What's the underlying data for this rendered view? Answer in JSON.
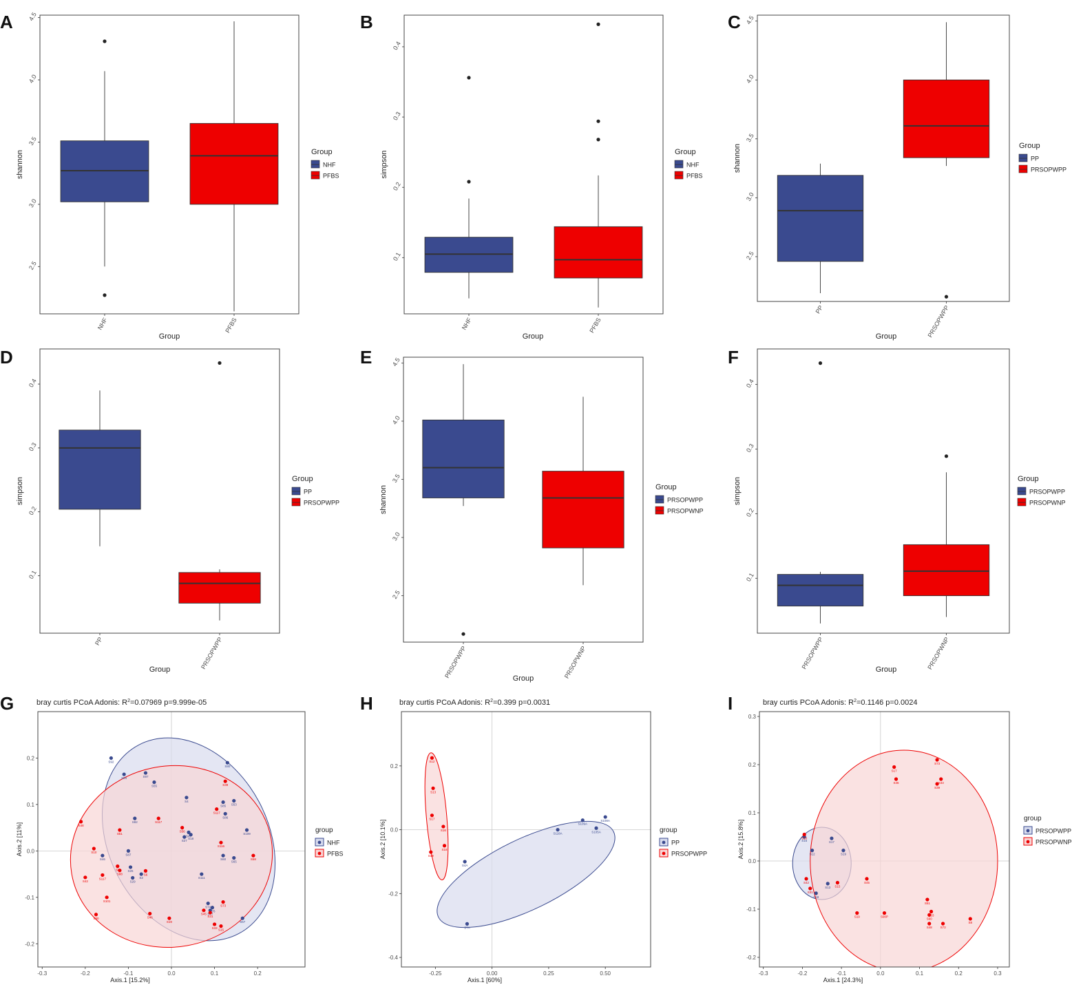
{
  "colors": {
    "blue": "#3a4a8f",
    "red": "#ee0000",
    "ellipse_blue_fill": "#d8dcee",
    "ellipse_red_fill": "#f8d6d6",
    "grid": "#c8c8c8",
    "axis_text": "#4d4d4d",
    "panel_border": "#444444"
  },
  "chart_data": [
    {
      "panel_letter": "A",
      "type": "boxplot",
      "xlabel": "Group",
      "ylabel": "shannon",
      "ylim": [
        2.12,
        4.52
      ],
      "yticks": [
        "2.5",
        "3.0",
        "3.5",
        "4.0",
        "4.5"
      ],
      "categories": [
        "NHF",
        "PFBS"
      ],
      "boxes": [
        {
          "group": "NHF",
          "q1": 3.02,
          "median": 3.27,
          "q3": 3.51,
          "whisker_low": 2.5,
          "whisker_high": 4.07,
          "outliers": [
            4.31,
            2.27
          ]
        },
        {
          "group": "PFBS",
          "q1": 3.0,
          "median": 3.39,
          "q3": 3.65,
          "whisker_low": 2.14,
          "whisker_high": 4.47,
          "outliers": []
        }
      ],
      "legend_title": "Group",
      "legend": [
        "NHF",
        "PFBS"
      ]
    },
    {
      "panel_letter": "B",
      "type": "boxplot",
      "xlabel": "Group",
      "ylabel": "simpson",
      "ylim": [
        0.02,
        0.445
      ],
      "yticks": [
        "0.1",
        "0.2",
        "0.3",
        "0.4"
      ],
      "categories": [
        "NHF",
        "PFBS"
      ],
      "boxes": [
        {
          "group": "NHF",
          "q1": 0.079,
          "median": 0.105,
          "q3": 0.129,
          "whisker_low": 0.042,
          "whisker_high": 0.184,
          "outliers": [
            0.356,
            0.208
          ]
        },
        {
          "group": "PFBS",
          "q1": 0.071,
          "median": 0.097,
          "q3": 0.144,
          "whisker_low": 0.029,
          "whisker_high": 0.217,
          "outliers": [
            0.432,
            0.294,
            0.268
          ]
        }
      ],
      "legend_title": "Group",
      "legend": [
        "NHF",
        "PFBS"
      ]
    },
    {
      "panel_letter": "C",
      "type": "boxplot",
      "xlabel": "Group",
      "ylabel": "shannon",
      "ylim": [
        2.12,
        4.55
      ],
      "yticks": [
        "2.5",
        "3.0",
        "3.5",
        "4.0",
        "4.5"
      ],
      "categories": [
        "PP",
        "PRSOPWPP"
      ],
      "boxes": [
        {
          "group": "PP",
          "q1": 2.46,
          "median": 2.89,
          "q3": 3.19,
          "whisker_low": 2.19,
          "whisker_high": 3.29,
          "outliers": []
        },
        {
          "group": "PRSOPWPP",
          "q1": 3.34,
          "median": 3.61,
          "q3": 4.0,
          "whisker_low": 3.27,
          "whisker_high": 4.49,
          "outliers": [
            2.16
          ]
        }
      ],
      "legend_title": "Group",
      "legend": [
        "PP",
        "PRSOPWPP"
      ]
    },
    {
      "panel_letter": "D",
      "type": "boxplot",
      "xlabel": "Group",
      "ylabel": "simpson",
      "ylim": [
        0.01,
        0.455
      ],
      "yticks": [
        "0.1",
        "0.2",
        "0.3",
        "0.4"
      ],
      "categories": [
        "PP",
        "PRSOPWPP"
      ],
      "boxes": [
        {
          "group": "PP",
          "q1": 0.204,
          "median": 0.3,
          "q3": 0.328,
          "whisker_low": 0.146,
          "whisker_high": 0.39,
          "outliers": []
        },
        {
          "group": "PRSOPWPP",
          "q1": 0.057,
          "median": 0.088,
          "q3": 0.105,
          "whisker_low": 0.03,
          "whisker_high": 0.11,
          "outliers": [
            0.433
          ]
        }
      ],
      "legend_title": "Group",
      "legend": [
        "PP",
        "PRSOPWPP"
      ]
    },
    {
      "panel_letter": "E",
      "type": "boxplot",
      "xlabel": "Group",
      "ylabel": "shannon",
      "ylim": [
        2.1,
        4.55
      ],
      "yticks": [
        "2.5",
        "3.0",
        "3.5",
        "4.0",
        "4.5"
      ],
      "categories": [
        "PRSOPWPP",
        "PRSOPWNP"
      ],
      "boxes": [
        {
          "group": "PRSOPWPP",
          "q1": 3.34,
          "median": 3.6,
          "q3": 4.01,
          "whisker_low": 3.27,
          "whisker_high": 4.49,
          "outliers": [
            2.17
          ]
        },
        {
          "group": "PRSOPWNP",
          "q1": 2.91,
          "median": 3.34,
          "q3": 3.57,
          "whisker_low": 2.59,
          "whisker_high": 4.21,
          "outliers": []
        }
      ],
      "legend_title": "Group",
      "legend": [
        "PRSOPWPP",
        "PRSOPWNP"
      ]
    },
    {
      "panel_letter": "F",
      "type": "boxplot",
      "xlabel": "Group",
      "ylabel": "simpson",
      "ylim": [
        0.015,
        0.455
      ],
      "yticks": [
        "0.1",
        "0.2",
        "0.3",
        "0.4"
      ],
      "categories": [
        "PRSOPWPP",
        "PRSOPWNP"
      ],
      "boxes": [
        {
          "group": "PRSOPWPP",
          "q1": 0.057,
          "median": 0.089,
          "q3": 0.106,
          "whisker_low": 0.03,
          "whisker_high": 0.11,
          "outliers": [
            0.433
          ]
        },
        {
          "group": "PRSOPWNP",
          "q1": 0.073,
          "median": 0.111,
          "q3": 0.152,
          "whisker_low": 0.04,
          "whisker_high": 0.264,
          "outliers": [
            0.289
          ]
        }
      ],
      "legend_title": "Group",
      "legend": [
        "PRSOPWPP",
        "PRSOPWNP"
      ]
    },
    {
      "panel_letter": "G",
      "type": "scatter",
      "title_prefix": "bray curtis PCoA   Adonis: R",
      "title_sup": "2",
      "title_suffix": "=0.07969 p=9.999e-05",
      "xlabel": "Axis.1  [15.2%]",
      "ylabel": "Axis.2  [11%]",
      "xlim": [
        -0.31,
        0.31
      ],
      "ylim": [
        -0.25,
        0.3
      ],
      "xticks": [
        "-0.3",
        "-0.2",
        "-0.1",
        "0.0",
        "0.1",
        "0.2"
      ],
      "xtick_values": [
        -0.3,
        -0.2,
        -0.1,
        0.0,
        0.1,
        0.2
      ],
      "yticks": [
        "-0.2",
        "-0.1",
        "0.0",
        "0.1",
        "0.2"
      ],
      "ytick_values": [
        -0.2,
        -0.1,
        0.0,
        0.1,
        0.2
      ],
      "legend_title": "group",
      "legend": [
        "NHF",
        "PFBS"
      ],
      "ellipses": [
        {
          "group": "NHF",
          "cx": 0.04,
          "cy": 0.025,
          "rx": 0.185,
          "ry": 0.23,
          "angle": -28
        },
        {
          "group": "PFBS",
          "cx": 0.0,
          "cy": -0.012,
          "rx": 0.235,
          "ry": 0.195,
          "angle": -10
        }
      ],
      "points": [
        {
          "group": "NHF",
          "x": -0.14,
          "y": 0.2,
          "label": "S92"
        },
        {
          "group": "NHF",
          "x": 0.13,
          "y": 0.19,
          "label": "S80"
        },
        {
          "group": "NHF",
          "x": -0.11,
          "y": 0.165,
          "label": "S84"
        },
        {
          "group": "NHF",
          "x": -0.06,
          "y": 0.168,
          "label": "S97"
        },
        {
          "group": "NHF",
          "x": -0.04,
          "y": 0.148,
          "label": "S55"
        },
        {
          "group": "NHF",
          "x": 0.035,
          "y": 0.115,
          "label": "S4"
        },
        {
          "group": "NHF",
          "x": 0.145,
          "y": 0.108,
          "label": "S53"
        },
        {
          "group": "NHF",
          "x": 0.12,
          "y": 0.105,
          "label": "S85"
        },
        {
          "group": "NHF",
          "x": 0.125,
          "y": 0.08,
          "label": "S86"
        },
        {
          "group": "NHF",
          "x": -0.085,
          "y": 0.07,
          "label": "S82"
        },
        {
          "group": "NHF",
          "x": 0.175,
          "y": 0.045,
          "label": "S109"
        },
        {
          "group": "NHF",
          "x": 0.04,
          "y": 0.04,
          "label": "S47"
        },
        {
          "group": "NHF",
          "x": 0.045,
          "y": 0.035,
          "label": "S18"
        },
        {
          "group": "NHF",
          "x": 0.03,
          "y": 0.03,
          "label": "S27"
        },
        {
          "group": "NHF",
          "x": -0.1,
          "y": 0.0,
          "label": "S87"
        },
        {
          "group": "NHF",
          "x": 0.12,
          "y": -0.01,
          "label": "S60"
        },
        {
          "group": "NHF",
          "x": 0.145,
          "y": -0.015,
          "label": "S65"
        },
        {
          "group": "NHF",
          "x": -0.16,
          "y": -0.01,
          "label": "S46"
        },
        {
          "group": "NHF",
          "x": -0.095,
          "y": -0.035,
          "label": "S26"
        },
        {
          "group": "NHF",
          "x": -0.07,
          "y": -0.05,
          "label": "S2"
        },
        {
          "group": "NHF",
          "x": -0.09,
          "y": -0.058,
          "label": "S29"
        },
        {
          "group": "NHF",
          "x": 0.07,
          "y": -0.05,
          "label": "S111"
        },
        {
          "group": "NHF",
          "x": 0.085,
          "y": -0.113,
          "label": "S74"
        },
        {
          "group": "NHF",
          "x": 0.095,
          "y": -0.122,
          "label": "S76"
        },
        {
          "group": "NHF",
          "x": 0.09,
          "y": -0.128,
          "label": "S77"
        },
        {
          "group": "NHF",
          "x": 0.165,
          "y": -0.145,
          "label": "S67"
        },
        {
          "group": "PFBS",
          "x": 0.125,
          "y": 0.15,
          "label": "S39"
        },
        {
          "group": "PFBS",
          "x": 0.105,
          "y": 0.09,
          "label": "S117"
        },
        {
          "group": "PFBS",
          "x": -0.21,
          "y": 0.063,
          "label": "S48"
        },
        {
          "group": "PFBS",
          "x": -0.03,
          "y": 0.07,
          "label": "S117"
        },
        {
          "group": "PFBS",
          "x": 0.025,
          "y": 0.05,
          "label": "S56"
        },
        {
          "group": "PFBS",
          "x": -0.12,
          "y": 0.045,
          "label": "S51"
        },
        {
          "group": "PFBS",
          "x": 0.115,
          "y": 0.018,
          "label": "S116"
        },
        {
          "group": "PFBS",
          "x": -0.18,
          "y": 0.005,
          "label": "S10"
        },
        {
          "group": "PFBS",
          "x": -0.125,
          "y": -0.033,
          "label": "S8"
        },
        {
          "group": "PFBS",
          "x": -0.12,
          "y": -0.042,
          "label": "S88"
        },
        {
          "group": "PFBS",
          "x": -0.06,
          "y": -0.043,
          "label": "S6"
        },
        {
          "group": "PFBS",
          "x": -0.2,
          "y": -0.057,
          "label": "S42"
        },
        {
          "group": "PFBS",
          "x": -0.16,
          "y": -0.052,
          "label": "S117"
        },
        {
          "group": "PFBS",
          "x": 0.19,
          "y": -0.01,
          "label": "S58"
        },
        {
          "group": "PFBS",
          "x": -0.15,
          "y": -0.1,
          "label": "S101"
        },
        {
          "group": "PFBS",
          "x": -0.175,
          "y": -0.137,
          "label": "S90"
        },
        {
          "group": "PFBS",
          "x": -0.05,
          "y": -0.135,
          "label": "S46"
        },
        {
          "group": "PFBS",
          "x": -0.005,
          "y": -0.145,
          "label": "S19"
        },
        {
          "group": "PFBS",
          "x": 0.12,
          "y": -0.11,
          "label": "S73"
        },
        {
          "group": "PFBS",
          "x": 0.075,
          "y": -0.128,
          "label": "S45"
        },
        {
          "group": "PFBS",
          "x": 0.09,
          "y": -0.133,
          "label": "S31"
        },
        {
          "group": "PFBS",
          "x": 0.1,
          "y": -0.158,
          "label": "S33"
        },
        {
          "group": "PFBS",
          "x": 0.115,
          "y": -0.162,
          "label": "S15"
        }
      ]
    },
    {
      "panel_letter": "H",
      "type": "scatter",
      "title_prefix": "bray curtis PCoA   Adonis: R",
      "title_sup": "2",
      "title_suffix": "=0.399 p=0.0031",
      "xlabel": "Axis.1  [60%]",
      "ylabel": "Axis.2  [10.1%]",
      "xlim": [
        -0.4,
        0.7
      ],
      "ylim": [
        -0.43,
        0.37
      ],
      "xticks": [
        "-0.25",
        "0.00",
        "0.25",
        "0.50"
      ],
      "xtick_values": [
        -0.25,
        0.0,
        0.25,
        0.5
      ],
      "yticks": [
        "-0.4",
        "-0.2",
        "0.0",
        "0.2"
      ],
      "ytick_values": [
        -0.4,
        -0.2,
        0.0,
        0.2
      ],
      "legend_title": "group",
      "legend": [
        "PP",
        "PRSOPWPP"
      ],
      "ellipses": [
        {
          "group": "PP",
          "cx": 0.15,
          "cy": -0.14,
          "rx": 0.43,
          "ry": 0.11,
          "angle": -26
        },
        {
          "group": "PRSOPWPP",
          "cx": -0.245,
          "cy": 0.042,
          "rx": 0.045,
          "ry": 0.2,
          "angle": -5
        }
      ],
      "points": [
        {
          "group": "PP",
          "x": 0.29,
          "y": 0.0,
          "label": "S118A"
        },
        {
          "group": "PP",
          "x": 0.4,
          "y": 0.03,
          "label": "S109A"
        },
        {
          "group": "PP",
          "x": 0.46,
          "y": 0.005,
          "label": "S105A"
        },
        {
          "group": "PP",
          "x": 0.5,
          "y": 0.04,
          "label": "S108A"
        },
        {
          "group": "PP",
          "x": -0.12,
          "y": -0.1,
          "label": "S4A"
        },
        {
          "group": "PP",
          "x": -0.11,
          "y": -0.295,
          "label": "S7A"
        },
        {
          "group": "PRSOPWPP",
          "x": -0.265,
          "y": 0.225,
          "label": "S12"
        },
        {
          "group": "PRSOPWPP",
          "x": -0.26,
          "y": 0.13,
          "label": "S13"
        },
        {
          "group": "PRSOPWPP",
          "x": -0.265,
          "y": 0.045,
          "label": "S17"
        },
        {
          "group": "PRSOPWPP",
          "x": -0.215,
          "y": 0.01,
          "label": "S16"
        },
        {
          "group": "PRSOPWPP",
          "x": -0.21,
          "y": -0.05,
          "label": "S18"
        },
        {
          "group": "PRSOPWPP",
          "x": -0.27,
          "y": -0.07,
          "label": "S19"
        }
      ]
    },
    {
      "panel_letter": "I",
      "type": "scatter",
      "title_prefix": "bray curtis PCoA   Adonis: R",
      "title_sup": "2",
      "title_suffix": "=0.1146 p=0.0024",
      "xlabel": "Axis.1  [24.3%]",
      "ylabel": "Axis.2  [15.8%]",
      "xlim": [
        -0.31,
        0.33
      ],
      "ylim": [
        -0.22,
        0.31
      ],
      "xticks": [
        "-0.3",
        "-0.2",
        "-0.1",
        "0.0",
        "0.1",
        "0.2",
        "0.3"
      ],
      "xtick_values": [
        -0.3,
        -0.2,
        -0.1,
        0.0,
        0.1,
        0.2,
        0.3
      ],
      "yticks": [
        "-0.2",
        "-0.1",
        "0.0",
        "0.1",
        "0.2",
        "0.3"
      ],
      "ytick_values": [
        -0.2,
        -0.1,
        0.0,
        0.1,
        0.2,
        0.3
      ],
      "legend_title": "group",
      "legend": [
        "PRSOPWPP",
        "PRSOPWNP"
      ],
      "ellipses": [
        {
          "group": "PRSOPWPP",
          "cx": -0.15,
          "cy": -0.005,
          "rx": 0.075,
          "ry": 0.075,
          "angle": 0
        },
        {
          "group": "PRSOPWNP",
          "cx": 0.06,
          "cy": 0.0,
          "rx": 0.24,
          "ry": 0.23,
          "angle": 0
        }
      ],
      "points": [
        {
          "group": "PRSOPWPP",
          "x": -0.195,
          "y": 0.05,
          "label": "S16"
        },
        {
          "group": "PRSOPWPP",
          "x": -0.125,
          "y": 0.047,
          "label": "S17"
        },
        {
          "group": "PRSOPWPP",
          "x": -0.175,
          "y": 0.022,
          "label": "S12"
        },
        {
          "group": "PRSOPWPP",
          "x": -0.095,
          "y": 0.022,
          "label": "S19"
        },
        {
          "group": "PRSOPWPP",
          "x": -0.135,
          "y": -0.047,
          "label": "S13"
        },
        {
          "group": "PRSOPWPP",
          "x": -0.165,
          "y": -0.067,
          "label": "S18"
        },
        {
          "group": "PRSOPWNP",
          "x": 0.145,
          "y": 0.21,
          "label": "S73"
        },
        {
          "group": "PRSOPWNP",
          "x": 0.035,
          "y": 0.195,
          "label": "S17"
        },
        {
          "group": "PRSOPWNP",
          "x": 0.155,
          "y": 0.17,
          "label": "S43"
        },
        {
          "group": "PRSOPWNP",
          "x": 0.04,
          "y": 0.17,
          "label": "S46"
        },
        {
          "group": "PRSOPWNP",
          "x": 0.145,
          "y": 0.16,
          "label": "S39"
        },
        {
          "group": "PRSOPWNP",
          "x": -0.195,
          "y": 0.055,
          "label": "S10"
        },
        {
          "group": "PRSOPWNP",
          "x": -0.19,
          "y": -0.037,
          "label": "S42"
        },
        {
          "group": "PRSOPWNP",
          "x": -0.035,
          "y": -0.037,
          "label": "S45"
        },
        {
          "group": "PRSOPWNP",
          "x": -0.11,
          "y": -0.045,
          "label": "S15"
        },
        {
          "group": "PRSOPWNP",
          "x": -0.18,
          "y": -0.057,
          "label": "S31"
        },
        {
          "group": "PRSOPWNP",
          "x": 0.12,
          "y": -0.08,
          "label": "S51"
        },
        {
          "group": "PRSOPWNP",
          "x": -0.06,
          "y": -0.108,
          "label": "S19"
        },
        {
          "group": "PRSOPWNP",
          "x": 0.01,
          "y": -0.108,
          "label": "S90P"
        },
        {
          "group": "PRSOPWNP",
          "x": 0.13,
          "y": -0.105,
          "label": "S33"
        },
        {
          "group": "PRSOPWNP",
          "x": 0.125,
          "y": -0.112,
          "label": "S60"
        },
        {
          "group": "PRSOPWNP",
          "x": 0.23,
          "y": -0.12,
          "label": "S8"
        },
        {
          "group": "PRSOPWNP",
          "x": 0.125,
          "y": -0.13,
          "label": "S48"
        },
        {
          "group": "PRSOPWNP",
          "x": 0.16,
          "y": -0.13,
          "label": "S73"
        }
      ]
    }
  ]
}
